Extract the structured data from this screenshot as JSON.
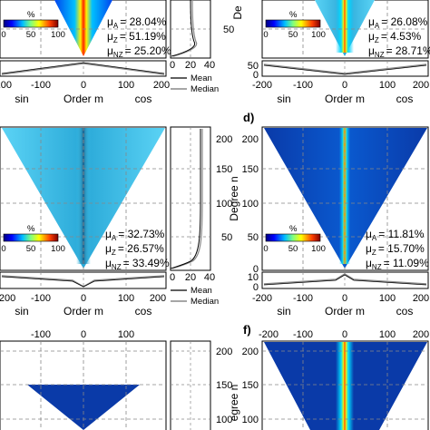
{
  "chart_data": {
    "type": "heatmap",
    "order_ticks": [
      -200,
      -100,
      0,
      100,
      200
    ],
    "order_label": "Order m",
    "sin_label": "sin",
    "cos_label": "cos",
    "degree_label": "Degree n",
    "degree_label_partial": "De",
    "degree_label_partial_f": "egree n",
    "colorbar": {
      "unit": "%",
      "ticks": [
        0,
        50,
        100
      ]
    },
    "profile_ticks": [
      0,
      20,
      40
    ],
    "legend": {
      "mean": "Mean",
      "median": "Median"
    },
    "panels": [
      {
        "id": "a",
        "stats": [
          {
            "sym": "μ",
            "sub": "A",
            "value": "= 28.04%"
          },
          {
            "sym": "μ",
            "sub": "Z",
            "value": "= 51.19%"
          },
          {
            "sym": "μ",
            "sub": "NZ",
            "value": "= 25.20%"
          }
        ],
        "degree_ticks": [
          50
        ],
        "strip_ticks": []
      },
      {
        "id": "b",
        "stats": [
          {
            "sym": "μ",
            "sub": "A",
            "value": "= 26.08%"
          },
          {
            "sym": "μ",
            "sub": "Z",
            "value": "= 4.53%"
          },
          {
            "sym": "μ",
            "sub": "NZ",
            "value": "= 28.71%"
          }
        ],
        "degree_ticks": [
          50
        ],
        "strip_ticks": [
          0,
          50
        ]
      },
      {
        "id": "c",
        "stats": [
          {
            "sym": "μ",
            "sub": "A",
            "value": "= 32.73%"
          },
          {
            "sym": "μ",
            "sub": "Z",
            "value": "= 26.57%"
          },
          {
            "sym": "μ",
            "sub": "NZ",
            "value": "= 33.49%"
          }
        ],
        "degree_ticks": [
          200,
          150,
          100,
          50
        ],
        "strip_ticks": []
      },
      {
        "id": "d",
        "label": "d)",
        "stats": [
          {
            "sym": "μ",
            "sub": "A",
            "value": "= 11.81%"
          },
          {
            "sym": "μ",
            "sub": "Z",
            "value": "= 15.70%"
          },
          {
            "sym": "μ",
            "sub": "NZ",
            "value": "= 11.09%"
          }
        ],
        "degree_ticks": [
          200,
          150,
          100,
          50,
          0
        ],
        "strip_ticks": [
          0,
          10
        ]
      },
      {
        "id": "e",
        "degree_ticks": [
          200,
          150,
          100
        ],
        "strip_ticks": []
      },
      {
        "id": "f",
        "label": "f)",
        "degree_ticks": [
          200,
          150,
          100
        ],
        "strip_ticks": []
      }
    ]
  },
  "colors": {
    "deep_blue": "#0a3aa8",
    "light_blue": "#3fc4ec",
    "grid": "#888888",
    "profile_mean": "#000000",
    "profile_median": "#888888"
  }
}
